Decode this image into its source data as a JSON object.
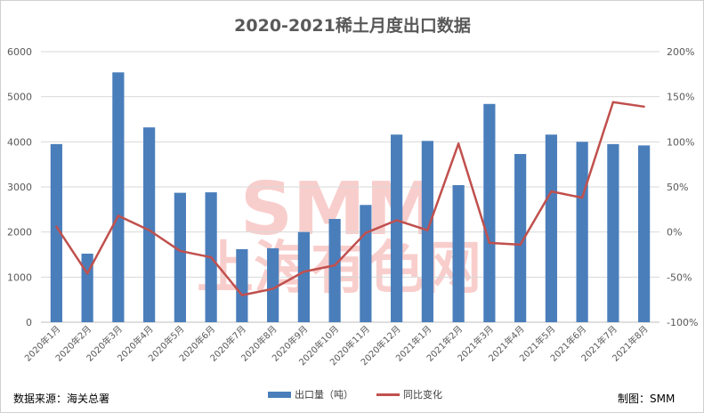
{
  "chart_data": {
    "type": "bar+line",
    "title": "2020-2021稀土月度出口数据",
    "categories": [
      "2020年1月",
      "2020年2月",
      "2020年3月",
      "2020年4月",
      "2020年5月",
      "2020年6月",
      "2020年7月",
      "2020年8月",
      "2020年9月",
      "2020年10月",
      "2020年11月",
      "2020年12月",
      "2021年1月",
      "2021年2月",
      "2021年3月",
      "2021年4月",
      "2021年5月",
      "2021年6月",
      "2021年7月",
      "2021年8月"
    ],
    "series": [
      {
        "name": "出口量（吨）",
        "type": "bar",
        "axis": "left",
        "color": "#4a7ebb",
        "values": [
          3950,
          1520,
          5540,
          4320,
          2870,
          2880,
          1620,
          1640,
          2000,
          2290,
          2600,
          4160,
          4020,
          3040,
          4840,
          3730,
          4160,
          4000,
          3950,
          3920
        ]
      },
      {
        "name": "同比变化",
        "type": "line",
        "axis": "right",
        "color": "#c0504d",
        "values": [
          6,
          -46,
          18,
          2,
          -21,
          -28,
          -70,
          -63,
          -44,
          -37,
          -1,
          13,
          2,
          98,
          -12,
          -14,
          45,
          38,
          144,
          139
        ]
      }
    ],
    "left_axis": {
      "min": 0,
      "max": 6000,
      "step": 1000,
      "ticks": [
        "0",
        "1000",
        "2000",
        "3000",
        "4000",
        "5000",
        "6000"
      ]
    },
    "right_axis": {
      "min": -100,
      "max": 200,
      "step": 50,
      "ticks": [
        "-100%",
        "-50%",
        "0%",
        "50%",
        "100%",
        "150%",
        "200%"
      ]
    },
    "grid": true,
    "legend": "bottom"
  },
  "watermark": {
    "line1": "SMM",
    "line2": "上海有色网"
  },
  "footer": {
    "source": "数据来源：海关总署",
    "credit": "制图：SMM"
  }
}
